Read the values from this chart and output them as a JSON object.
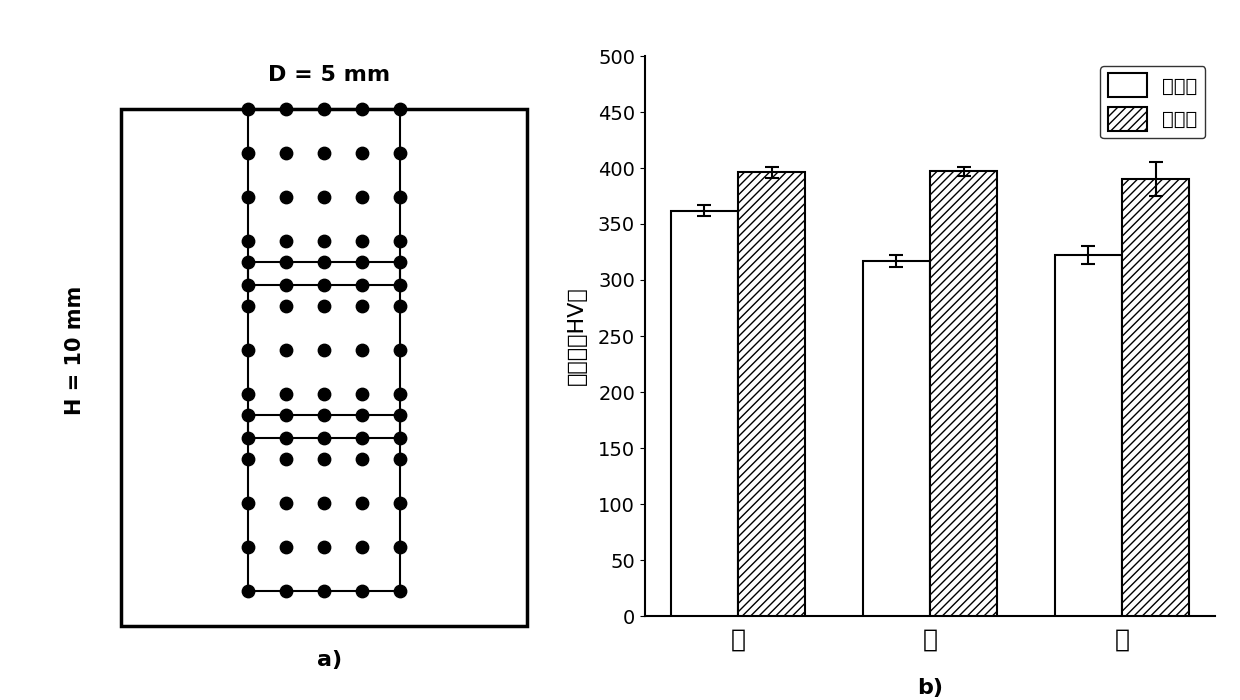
{
  "title_left": "D = 5 mm",
  "label_left_side": "H = 10 mm",
  "label_a": "a)",
  "label_b": "b)",
  "categories": [
    "上",
    "中",
    "下"
  ],
  "before_values": [
    362,
    317,
    322
  ],
  "after_values": [
    396,
    397,
    390
  ],
  "before_errors": [
    5,
    5,
    8
  ],
  "after_errors": [
    5,
    4,
    15
  ],
  "ylabel": "硬度値（HV）",
  "ylim": [
    0,
    500
  ],
  "yticks": [
    0,
    50,
    100,
    150,
    200,
    250,
    300,
    350,
    400,
    450,
    500
  ],
  "legend_before": "处理前",
  "legend_after": "处理后",
  "bar_width": 0.35,
  "dot_grid_rows": 5,
  "dot_grid_cols": 5,
  "background_color": "#ffffff",
  "bar_edge_color": "#000000",
  "hatch_pattern": "////"
}
